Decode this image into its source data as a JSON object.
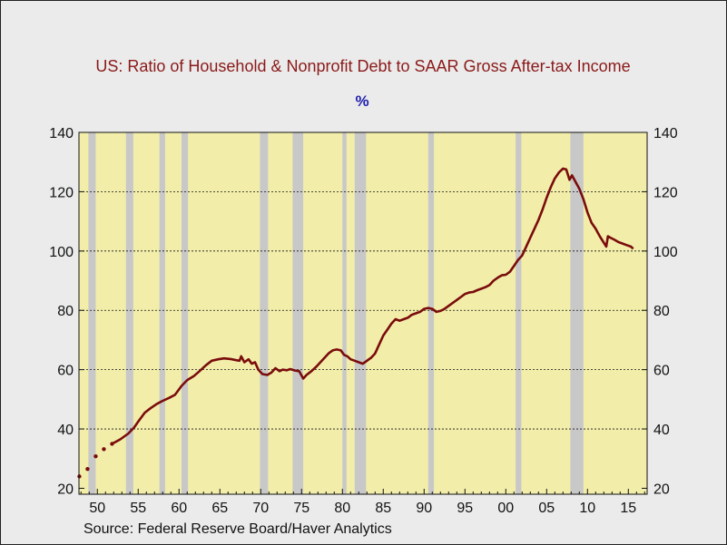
{
  "colors": {
    "background": "#ebebeb",
    "plot_background": "#f2eeaa",
    "recession_band": "#c8c8c8",
    "line": "#7a0c0c",
    "title": "#8b1a1a",
    "subtitle": "#1f1fb0",
    "grid": "#111111"
  },
  "chart_data": {
    "type": "line",
    "title": "US: Ratio of Household & Nonprofit Debt to SAAR Gross After-tax Income",
    "subtitle": "%",
    "source": "Source:  Federal Reserve Board/Haver Analytics",
    "xlim": [
      1947.75,
      2017.3
    ],
    "ylim": [
      18,
      140
    ],
    "grid": "horizontal dotted at 40, 60, 80, 100, 120",
    "y_ticks": [
      20,
      40,
      60,
      80,
      100,
      120,
      140
    ],
    "x_ticks": [
      {
        "year": 1950,
        "label": "50"
      },
      {
        "year": 1955,
        "label": "55"
      },
      {
        "year": 1960,
        "label": "60"
      },
      {
        "year": 1965,
        "label": "65"
      },
      {
        "year": 1970,
        "label": "70"
      },
      {
        "year": 1975,
        "label": "75"
      },
      {
        "year": 1980,
        "label": "80"
      },
      {
        "year": 1985,
        "label": "85"
      },
      {
        "year": 1990,
        "label": "90"
      },
      {
        "year": 1995,
        "label": "95"
      },
      {
        "year": 2000,
        "label": "00"
      },
      {
        "year": 2005,
        "label": "05"
      },
      {
        "year": 2010,
        "label": "10"
      },
      {
        "year": 2015,
        "label": "15"
      }
    ],
    "recessions": [
      [
        1948.9,
        1949.8
      ],
      [
        1953.5,
        1954.4
      ],
      [
        1957.6,
        1958.3
      ],
      [
        1960.3,
        1961.1
      ],
      [
        1969.9,
        1970.9
      ],
      [
        1973.9,
        1975.2
      ],
      [
        1980.0,
        1980.5
      ],
      [
        1981.5,
        1982.9
      ],
      [
        1990.5,
        1991.2
      ],
      [
        2001.2,
        2001.9
      ],
      [
        2007.9,
        2009.5
      ]
    ],
    "series": [
      {
        "x": [
          1947.8,
          1948.8,
          1949.8,
          1950.8,
          1951.8,
          1952.8,
          1953.8,
          1954.5,
          1955.0,
          1955.8,
          1956.5,
          1957.3,
          1958.0,
          1958.8,
          1959.5,
          1960.3,
          1961.0,
          1961.8,
          1962.5,
          1963.3,
          1964.0,
          1964.8,
          1965.5,
          1966.3,
          1967.0,
          1967.4,
          1967.6,
          1968.0,
          1968.5,
          1968.9,
          1969.3,
          1969.7,
          1970.2,
          1970.8,
          1971.3,
          1971.8,
          1972.3,
          1972.7,
          1973.2,
          1973.6,
          1974.2,
          1974.7,
          1975.2,
          1975.6,
          1976.2,
          1976.8,
          1977.3,
          1977.8,
          1978.3,
          1978.8,
          1979.3,
          1979.8,
          1980.2,
          1980.6,
          1981.0,
          1981.5,
          1982.0,
          1982.5,
          1983.0,
          1983.5,
          1984.0,
          1984.5,
          1985.0,
          1985.5,
          1986.0,
          1986.5,
          1987.0,
          1987.5,
          1988.0,
          1988.5,
          1989.0,
          1989.5,
          1990.0,
          1990.5,
          1991.0,
          1991.5,
          1992.0,
          1992.5,
          1993.0,
          1993.5,
          1994.0,
          1994.5,
          1995.0,
          1995.5,
          1996.0,
          1996.5,
          1997.0,
          1997.5,
          1998.0,
          1998.5,
          1999.0,
          1999.5,
          2000.0,
          2000.5,
          2001.0,
          2001.5,
          2002.0,
          2002.5,
          2003.0,
          2003.5,
          2004.0,
          2004.5,
          2005.0,
          2005.5,
          2006.0,
          2006.5,
          2007.0,
          2007.4,
          2007.8,
          2008.1,
          2008.4,
          2008.7,
          2009.0,
          2009.5,
          2010.0,
          2010.5,
          2011.0,
          2011.5,
          2012.0,
          2012.3,
          2012.5,
          2012.8,
          2013.3,
          2013.8,
          2014.3,
          2014.8,
          2015.3,
          2015.6
        ],
        "y": [
          24.0,
          26.5,
          30.8,
          33.2,
          35.0,
          36.5,
          38.5,
          40.5,
          42.5,
          45.5,
          47.0,
          48.5,
          49.5,
          50.5,
          51.5,
          54.5,
          56.5,
          57.8,
          59.5,
          61.5,
          63.0,
          63.5,
          63.8,
          63.6,
          63.2,
          63.0,
          64.5,
          62.5,
          63.5,
          62.0,
          62.5,
          60.0,
          58.5,
          58.2,
          59.0,
          60.5,
          59.5,
          60.0,
          59.8,
          60.2,
          59.7,
          59.5,
          57.0,
          58.2,
          59.5,
          61.0,
          62.5,
          64.0,
          65.5,
          66.5,
          66.8,
          66.5,
          65.0,
          64.5,
          63.5,
          63.0,
          62.5,
          62.0,
          63.0,
          64.0,
          65.5,
          68.5,
          71.5,
          73.5,
          75.5,
          77.0,
          76.5,
          77.0,
          77.5,
          78.5,
          79.0,
          79.5,
          80.5,
          80.8,
          80.5,
          79.5,
          79.8,
          80.5,
          81.5,
          82.5,
          83.5,
          84.5,
          85.5,
          86.0,
          86.2,
          86.8,
          87.3,
          87.8,
          88.5,
          90.0,
          91.0,
          91.8,
          92.0,
          93.0,
          95.0,
          97.0,
          98.5,
          101.5,
          104.5,
          107.5,
          110.5,
          114.0,
          118.0,
          121.5,
          124.5,
          126.5,
          127.8,
          127.5,
          124.0,
          125.5,
          124.0,
          122.5,
          121.0,
          117.5,
          113.0,
          109.5,
          107.5,
          105.0,
          102.8,
          101.5,
          105.0,
          104.5,
          103.8,
          103.0,
          102.5,
          102.0,
          101.5,
          100.8
        ]
      }
    ]
  }
}
